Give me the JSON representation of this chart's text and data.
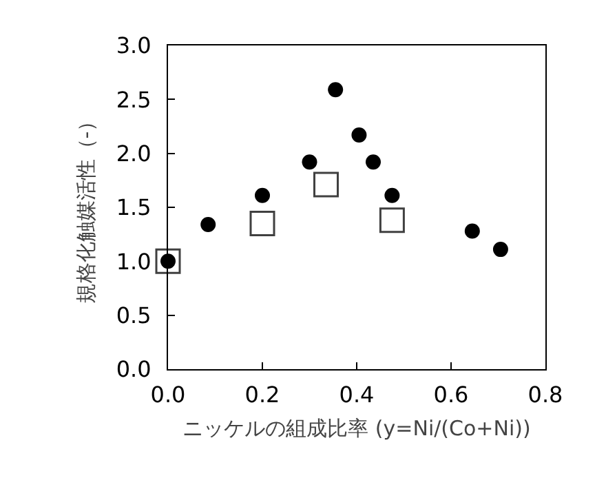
{
  "chart_data": {
    "type": "scatter",
    "xlabel": "ニッケルの組成比率 (y=Ni/(Co+Ni))",
    "ylabel": "規格化触媒活性（-）",
    "xlim": [
      0,
      0.8
    ],
    "xticks": [
      {
        "value": 0,
        "label": "0.0"
      },
      0.2,
      0.4,
      0.6,
      0.8
    ],
    "ylim": [
      0,
      3
    ],
    "yticks": [
      {
        "value": 0,
        "label": "0.0"
      },
      0.5,
      {
        "value": 1,
        "label": "1.0"
      },
      1.5,
      {
        "value": 2,
        "label": "2.0"
      },
      2.5,
      {
        "value": 3,
        "label": "3.0"
      }
    ],
    "grid": false,
    "legend": false,
    "series": [
      {
        "color": "#404040",
        "marker": "square",
        "x": [
          0,
          0.2,
          0.335,
          0.475
        ],
        "values": [
          1.0,
          1.35,
          1.71,
          1.38
        ]
      },
      {
        "color": "#000000",
        "marker": "circle",
        "x": [
          0,
          0.085,
          0.2,
          0.3,
          0.355,
          0.405,
          0.435,
          0.475,
          0.645,
          0.705
        ],
        "values": [
          1.0,
          1.34,
          1.61,
          1.92,
          2.59,
          2.17,
          1.92,
          1.61,
          1.28,
          1.11
        ]
      }
    ]
  }
}
